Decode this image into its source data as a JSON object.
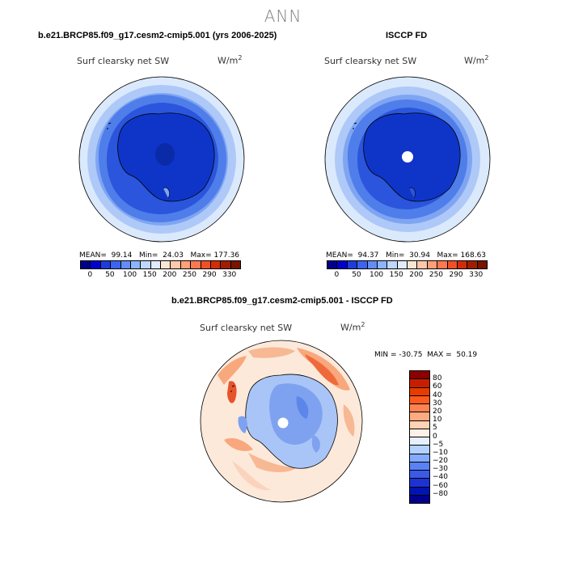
{
  "page_title": "ANN",
  "panels": {
    "model": {
      "title": "b.e21.BRCP85.f09_g17.cesm2-cmip5.001 (yrs 2006-2025)",
      "variable": "Surf clearsky net SW",
      "units_base": "W/m",
      "units_exp": "2",
      "stats": "MEAN=  99.14   Min=  24.03   Max= 177.36",
      "mean": 99.14,
      "min": 24.03,
      "max": 177.36
    },
    "obs": {
      "title": "ISCCP FD",
      "variable": "Surf clearsky net SW",
      "units_base": "W/m",
      "units_exp": "2",
      "stats": "MEAN=  94.37   Min=  30.94   Max= 168.63",
      "mean": 94.37,
      "min": 30.94,
      "max": 168.63
    },
    "diff": {
      "title": "b.e21.BRCP85.f09_g17.cesm2-cmip5.001 - ISCCP FD",
      "variable": "Surf clearsky net SW",
      "units_base": "W/m",
      "units_exp": "2",
      "stats": "MIN = -30.75  MAX =  50.19",
      "min": -30.75,
      "max": 50.19
    }
  },
  "colorbar_abs": {
    "colors": [
      "#00008b",
      "#0000cd",
      "#1e3cdc",
      "#3c64f0",
      "#648cf5",
      "#8cb4ff",
      "#bed7ff",
      "#e1ebfa",
      "#fae6d2",
      "#ffc8aa",
      "#ffa078",
      "#ff7850",
      "#f05028",
      "#d22d0a",
      "#a01e00",
      "#781400"
    ],
    "labels": [
      "0",
      "50",
      "100",
      "150",
      "200",
      "250",
      "290",
      "330"
    ]
  },
  "colorbar_diff": {
    "colors": [
      "#8b0000",
      "#c81e00",
      "#e63c00",
      "#ff5a1e",
      "#ff8250",
      "#ffaa82",
      "#ffd2b4",
      "#fff0e6",
      "#e6f0ff",
      "#b4d2ff",
      "#82aaff",
      "#5a82f5",
      "#3c5ae6",
      "#1e32d2",
      "#0014b4",
      "#00008c"
    ],
    "labels": [
      "80",
      "60",
      "40",
      "30",
      "20",
      "10",
      "5",
      "0",
      "−5",
      "−10",
      "−20",
      "−30",
      "−40",
      "−60",
      "−80"
    ]
  }
}
